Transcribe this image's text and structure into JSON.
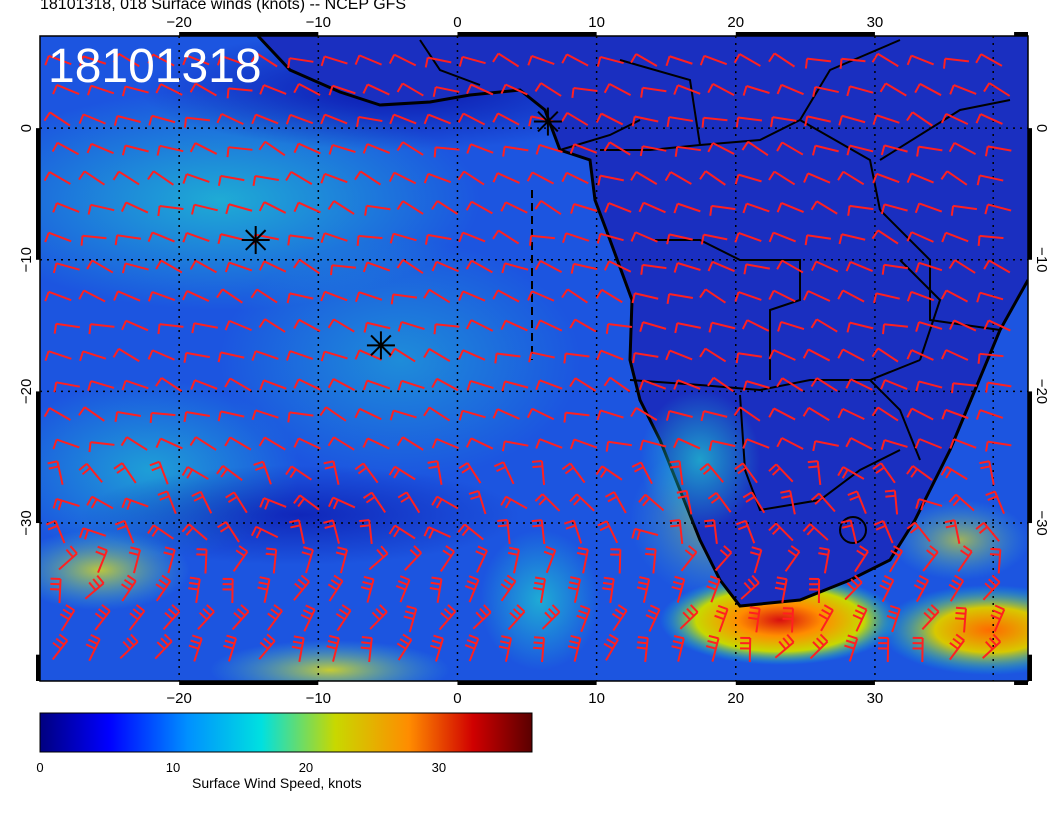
{
  "title": "18101318, 018 Surface winds (knots) -- NCEP GFS",
  "stamp": "18101318",
  "colorbar": {
    "label": "Surface Wind Speed, knots",
    "ticks": [
      "0",
      "10",
      "20",
      "30"
    ],
    "range": [
      0,
      37
    ],
    "colors": [
      "#00007f",
      "#0000ff",
      "#0090ff",
      "#00e0e0",
      "#c8d800",
      "#ff8c00",
      "#d00000",
      "#5a0000"
    ]
  },
  "map": {
    "lon_range": [
      -30,
      41
    ],
    "lat_range": [
      -42,
      7
    ],
    "lon_ticks": [
      "−20",
      "−10",
      "0",
      "10",
      "20",
      "30"
    ],
    "lat_ticks": [
      "0",
      "−10",
      "−20",
      "−30"
    ],
    "barb_color": "#ff2020",
    "land_outline_color": "#000000",
    "markers": [
      {
        "name": "storm-marker-1",
        "lon": 6.5,
        "lat": 0.5
      },
      {
        "name": "storm-marker-2",
        "lon": -14.5,
        "lat": -8.5
      },
      {
        "name": "storm-marker-3",
        "lon": -5.5,
        "lat": -16.5
      }
    ]
  }
}
